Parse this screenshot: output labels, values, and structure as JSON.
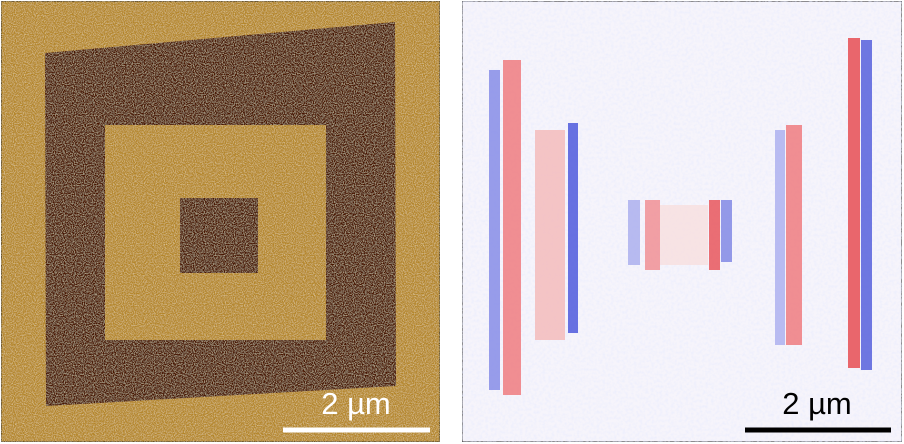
{
  "panels": [
    {
      "scale_bar_label": "2 µm"
    },
    {
      "scale_bar_label": "2 µm"
    }
  ]
}
